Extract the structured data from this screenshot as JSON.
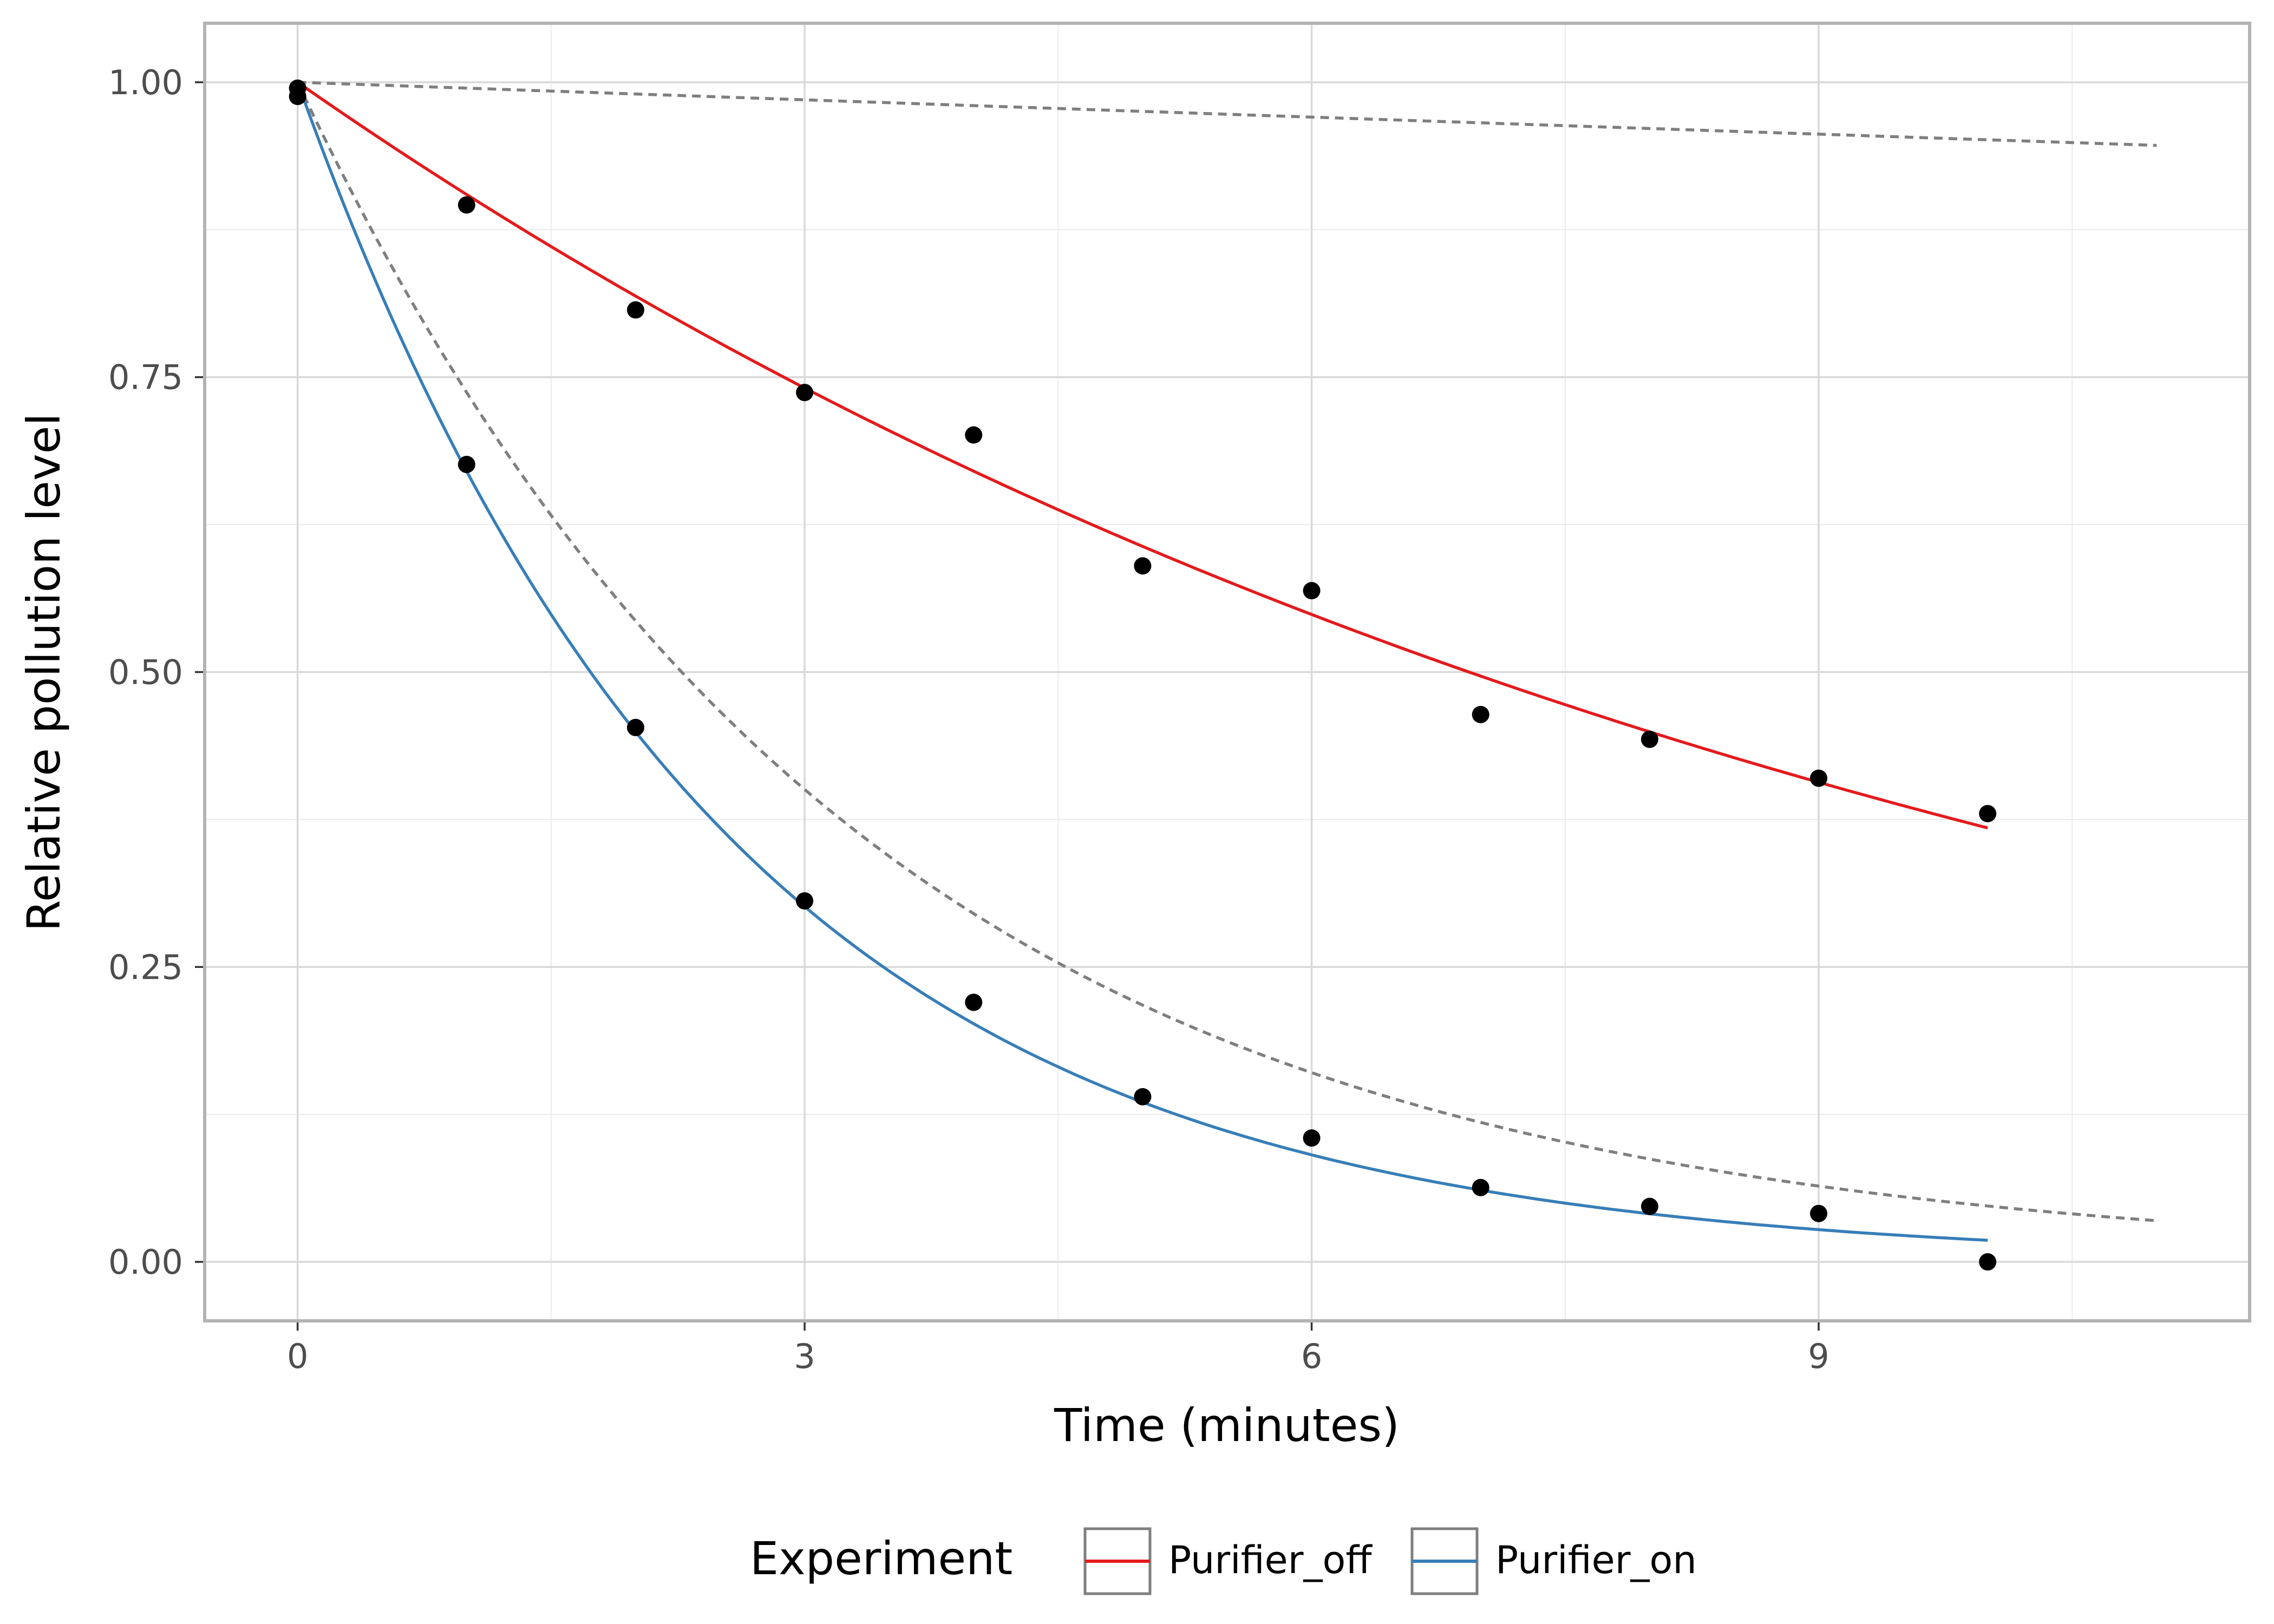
{
  "chart_data": {
    "type": "scatter",
    "title": "",
    "xlabel": "Time (minutes)",
    "ylabel": "Relative pollution level",
    "xlim": [
      -0.55,
      11.55
    ],
    "ylim": [
      -0.05,
      1.05
    ],
    "x_ticks": [
      0,
      3,
      6,
      9
    ],
    "x_tick_labels": [
      "0",
      "3",
      "6",
      "9"
    ],
    "y_ticks": [
      0,
      0.25,
      0.5,
      0.75,
      1.0
    ],
    "y_tick_labels": [
      "0.00",
      "0.25",
      "0.50",
      "0.75",
      "1.00"
    ],
    "grid": true,
    "points": [
      {
        "x": 0,
        "y": 0.995
      },
      {
        "x": 0,
        "y": 0.988
      },
      {
        "x": 1,
        "y": 0.896
      },
      {
        "x": 2,
        "y": 0.807
      },
      {
        "x": 3,
        "y": 0.737
      },
      {
        "x": 4,
        "y": 0.701
      },
      {
        "x": 5,
        "y": 0.59
      },
      {
        "x": 6,
        "y": 0.569
      },
      {
        "x": 7,
        "y": 0.464
      },
      {
        "x": 8,
        "y": 0.443
      },
      {
        "x": 9,
        "y": 0.41
      },
      {
        "x": 10,
        "y": 0.38
      },
      {
        "x": 1,
        "y": 0.676
      },
      {
        "x": 2,
        "y": 0.453
      },
      {
        "x": 3,
        "y": 0.306
      },
      {
        "x": 4,
        "y": 0.22
      },
      {
        "x": 5,
        "y": 0.14
      },
      {
        "x": 6,
        "y": 0.105
      },
      {
        "x": 7,
        "y": 0.063
      },
      {
        "x": 8,
        "y": 0.047
      },
      {
        "x": 9,
        "y": 0.041
      },
      {
        "x": 10,
        "y": 0.0
      }
    ],
    "series": [
      {
        "name": "Purifier_off",
        "color": "#e41a1c",
        "style": "solid",
        "k": 0.1,
        "x_range": [
          0,
          10
        ]
      },
      {
        "name": "Purifier_on",
        "color": "#377eb8",
        "style": "solid",
        "k": 0.4,
        "x_range": [
          0,
          10
        ]
      }
    ],
    "reference_curves": [
      {
        "name": "reference-slow",
        "color": "#7f7f7f",
        "style": "dashed",
        "k": 0.005,
        "x_range": [
          0,
          11
        ]
      },
      {
        "name": "reference-fast",
        "color": "#7f7f7f",
        "style": "dashed",
        "k": 0.305,
        "x_range": [
          0,
          11
        ]
      }
    ],
    "legend": {
      "title": "Experiment",
      "position": "bottom",
      "entries": [
        "Purifier_off",
        "Purifier_on"
      ]
    }
  }
}
